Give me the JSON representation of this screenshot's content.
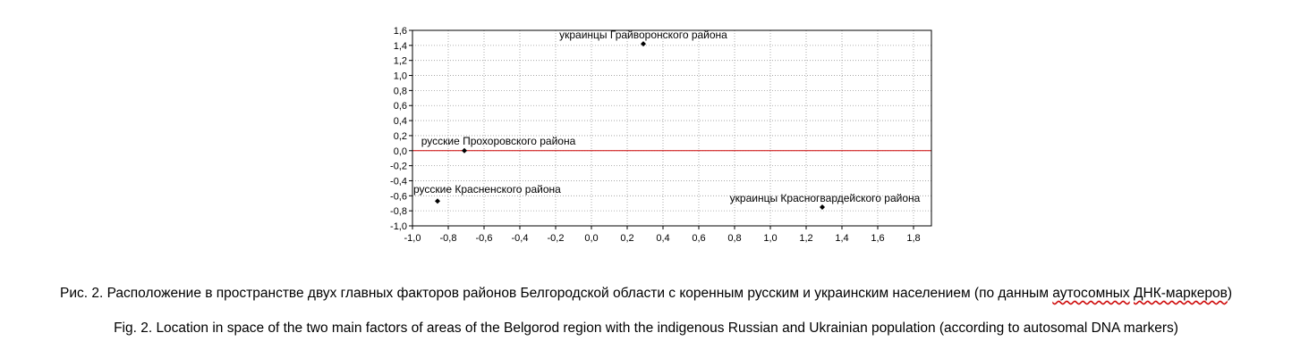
{
  "chart_data": {
    "type": "scatter",
    "xlim": [
      -1.0,
      1.9
    ],
    "ylim": [
      -1.0,
      1.6
    ],
    "x_ticks": [
      "-1,0",
      "-0,8",
      "-0,6",
      "-0,4",
      "-0,2",
      "0,0",
      "0,2",
      "0,4",
      "0,6",
      "0,8",
      "1,0",
      "1,2",
      "1,4",
      "1,6",
      "1,8"
    ],
    "x_tick_values": [
      -1.0,
      -0.8,
      -0.6,
      -0.4,
      -0.2,
      0.0,
      0.2,
      0.4,
      0.6,
      0.8,
      1.0,
      1.2,
      1.4,
      1.6,
      1.8
    ],
    "y_ticks": [
      "1,6",
      "1,4",
      "1,2",
      "1,0",
      "0,8",
      "0,6",
      "0,4",
      "0,2",
      "0,0",
      "-0,2",
      "-0,4",
      "-0,6",
      "-0,8",
      "-1,0"
    ],
    "y_tick_values": [
      1.6,
      1.4,
      1.2,
      1.0,
      0.8,
      0.6,
      0.4,
      0.2,
      0.0,
      -0.2,
      -0.4,
      -0.6,
      -0.8,
      -1.0
    ],
    "grid": true,
    "reference_line": {
      "y": 0.0,
      "color": "#cc0000"
    },
    "points": [
      {
        "x": 0.29,
        "y": 1.42,
        "label": "украинцы Грайворонского района"
      },
      {
        "x": -0.71,
        "y": 0.0,
        "label": "русские Прохоровского района"
      },
      {
        "x": -0.86,
        "y": -0.67,
        "label": "русские Красненского района"
      },
      {
        "x": 1.29,
        "y": -0.75,
        "label": "украинцы Красногвардейского района"
      }
    ],
    "marker_color": "#000000"
  },
  "captions": {
    "ru_before": "Рис. 2. Расположение в пространстве двух главных факторов районов Белгородской области с коренным русским и украинским населением (по данным ",
    "ru_word1": "аутосомных",
    "ru_space": " ",
    "ru_word2": "ДНК-маркеров",
    "ru_after": ")",
    "en": "Fig. 2. Location in space of the two main factors of areas of the Belgorod region with the indigenous Russian and Ukrainian population (according to autosomal DNA markers)"
  }
}
